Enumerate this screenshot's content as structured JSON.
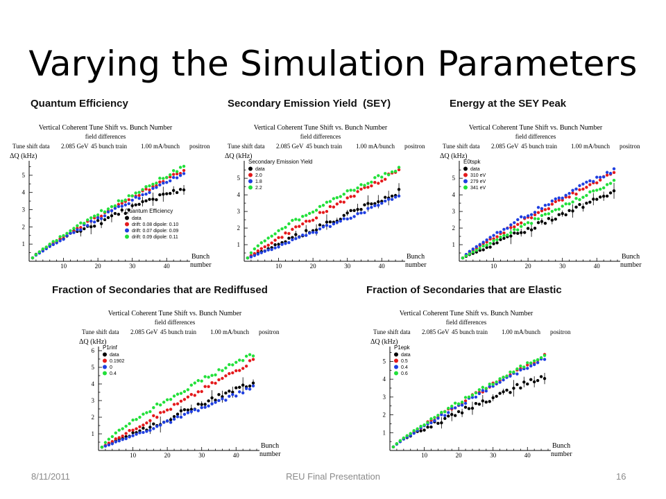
{
  "slide": {
    "title": "Varying the Simulation Parameters",
    "footer_date": "8/11/2011",
    "footer_center": "REU Final Presentation",
    "footer_page": "16"
  },
  "headings": [
    "Quantum Efficiency",
    "Secondary Emission Yield  (SEY)",
    "Energy at the SEY Peak",
    "Fraction of Secondaries that are Rediffused",
    "Fraction of Secondaries that are Elastic"
  ],
  "colors": {
    "data": "#000000",
    "red": "#e41a1c",
    "blue": "#1f3fe0",
    "green": "#22e03a"
  },
  "chart_data": [
    {
      "type": "scatter",
      "heading": "Quantum Efficiency",
      "title": "Vertical Coherent Tune Shift vs. Bunch Number",
      "subtitle": "field differences",
      "info": [
        "Tune shift data",
        "2.085 GeV",
        "45 bunch train",
        "1.00 mA/bunch",
        "positron"
      ],
      "ylabel": "ΔQ (kHz)",
      "xlabel": [
        "Bunch",
        "number"
      ],
      "xlim": [
        0,
        46
      ],
      "ylim": [
        0,
        5.6
      ],
      "xticks": [
        10,
        20,
        30,
        40
      ],
      "yticks": [
        1,
        2,
        3,
        4,
        5
      ],
      "legend": {
        "title": "Quantum Efficiency",
        "position": "lower-right",
        "entries": [
          "data",
          "drift: 0.08     dipole: 0.10",
          "drift: 0.07     dipole: 0.09",
          "drift: 0.09     dipole: 0.11"
        ]
      },
      "series": [
        {
          "color": "black",
          "ends": [
            0.2,
            4.25
          ],
          "power": 0.8,
          "noise": 0.18,
          "errors": true
        },
        {
          "color": "red",
          "ends": [
            0.2,
            5.3
          ],
          "power": 0.9,
          "noise": 0.1
        },
        {
          "color": "blue",
          "ends": [
            0.2,
            5.1
          ],
          "power": 0.92,
          "noise": 0.1
        },
        {
          "color": "green",
          "ends": [
            0.2,
            5.5
          ],
          "power": 0.88,
          "noise": 0.1
        }
      ]
    },
    {
      "type": "scatter",
      "heading": "Secondary Emission Yield  (SEY)",
      "title": "Vertical Coherent Tune Shift vs. Bunch Number",
      "subtitle": "field differences",
      "info": [
        "Tune shift data",
        "2.085 GeV",
        "45 bunch train",
        "1.00 mA/bunch",
        "positron"
      ],
      "ylabel": "ΔQ (kHz)",
      "xlabel": [
        "Bunch",
        "number"
      ],
      "xlim": [
        0,
        46
      ],
      "ylim": [
        0,
        5.8
      ],
      "xticks": [
        10,
        20,
        30,
        40
      ],
      "yticks": [
        1,
        2,
        3,
        4,
        5
      ],
      "legend": {
        "title": "Secondary Emission Yield",
        "position": "top-left",
        "entries": [
          "data",
          "2.0",
          "1.8",
          "2.2"
        ]
      },
      "series": [
        {
          "color": "black",
          "ends": [
            0.2,
            4.2
          ],
          "power": 1.0,
          "noise": 0.15,
          "errors": true
        },
        {
          "color": "red",
          "ends": [
            0.2,
            5.5
          ],
          "power": 0.95,
          "noise": 0.12
        },
        {
          "color": "blue",
          "ends": [
            0.2,
            3.9
          ],
          "power": 1.05,
          "noise": 0.1
        },
        {
          "color": "green",
          "ends": [
            0.2,
            5.6
          ],
          "power": 0.75,
          "noise": 0.12
        }
      ]
    },
    {
      "type": "scatter",
      "heading": "Energy at the SEY Peak",
      "title": "Vertical Coherent Tune Shift vs. Bunch Number",
      "subtitle": "field differences",
      "info": [
        "Tune shift data",
        "2.085 GeV",
        "45 bunch train",
        "1.00 mA/bunch",
        "positron"
      ],
      "ylabel": "ΔQ (kHz)",
      "xlabel": [
        "Bunch",
        "number"
      ],
      "xlim": [
        0,
        46
      ],
      "ylim": [
        0,
        5.8
      ],
      "xticks": [
        10,
        20,
        30,
        40
      ],
      "yticks": [
        1,
        2,
        3,
        4,
        5
      ],
      "legend": {
        "title": "E0tspk",
        "position": "top-left",
        "entries": [
          "data",
          "310 eV",
          "279 eV",
          "341 eV"
        ]
      },
      "series": [
        {
          "color": "black",
          "ends": [
            0.2,
            4.2
          ],
          "power": 1.0,
          "noise": 0.15,
          "errors": true
        },
        {
          "color": "red",
          "ends": [
            0.2,
            5.3
          ],
          "power": 0.9,
          "noise": 0.12
        },
        {
          "color": "blue",
          "ends": [
            0.2,
            5.5
          ],
          "power": 0.85,
          "noise": 0.12
        },
        {
          "color": "green",
          "ends": [
            0.2,
            4.8
          ],
          "power": 0.95,
          "noise": 0.1
        }
      ]
    },
    {
      "type": "scatter",
      "heading": "Fraction of Secondaries that are Rediffused",
      "title": "Vertical Coherent Tune Shift vs. Bunch Number",
      "subtitle": "field differences",
      "info": [
        "Tune shift data",
        "2.085 GeV",
        "45 bunch train",
        "1.00 mA/bunch",
        "positron"
      ],
      "ylabel": "ΔQ (kHz)",
      "xlabel": [
        "Bunch",
        "number"
      ],
      "xlim": [
        0,
        46
      ],
      "ylim": [
        0,
        6
      ],
      "xticks": [
        10,
        20,
        30,
        40
      ],
      "yticks": [
        1,
        2,
        3,
        4,
        5,
        6
      ],
      "legend": {
        "title": "P1rinf",
        "position": "top-left",
        "entries": [
          "data",
          "0.1902",
          "0",
          "0.4"
        ]
      },
      "series": [
        {
          "color": "black",
          "ends": [
            0.2,
            4.1
          ],
          "power": 1.0,
          "noise": 0.15,
          "errors": true
        },
        {
          "color": "red",
          "ends": [
            0.2,
            5.4
          ],
          "power": 1.0,
          "noise": 0.12
        },
        {
          "color": "blue",
          "ends": [
            0.2,
            3.8
          ],
          "power": 1.05,
          "noise": 0.1
        },
        {
          "color": "green",
          "ends": [
            0.2,
            5.8
          ],
          "power": 0.8,
          "noise": 0.12
        }
      ]
    },
    {
      "type": "scatter",
      "heading": "Fraction of Secondaries that are Elastic",
      "title": "Vertical Coherent Tune Shift vs. Bunch Number",
      "subtitle": "field differences",
      "info": [
        "Tune shift data",
        "2.085 GeV",
        "45 bunch train",
        "1.00 mA/bunch",
        "positron"
      ],
      "ylabel": "ΔQ (kHz)",
      "xlabel": [
        "Bunch",
        "number"
      ],
      "xlim": [
        0,
        46
      ],
      "ylim": [
        0,
        5.6
      ],
      "xticks": [
        10,
        20,
        30,
        40
      ],
      "yticks": [
        1,
        2,
        3,
        4,
        5
      ],
      "legend": {
        "title": "P1epk",
        "position": "top-left",
        "entries": [
          "data",
          "0.5",
          "0.4",
          "0.6"
        ]
      },
      "series": [
        {
          "color": "black",
          "ends": [
            0.2,
            4.2
          ],
          "power": 0.85,
          "noise": 0.18,
          "errors": true
        },
        {
          "color": "red",
          "ends": [
            0.2,
            5.3
          ],
          "power": 0.9,
          "noise": 0.1
        },
        {
          "color": "blue",
          "ends": [
            0.2,
            5.2
          ],
          "power": 0.92,
          "noise": 0.1
        },
        {
          "color": "green",
          "ends": [
            0.2,
            5.4
          ],
          "power": 0.88,
          "noise": 0.1
        }
      ]
    }
  ]
}
